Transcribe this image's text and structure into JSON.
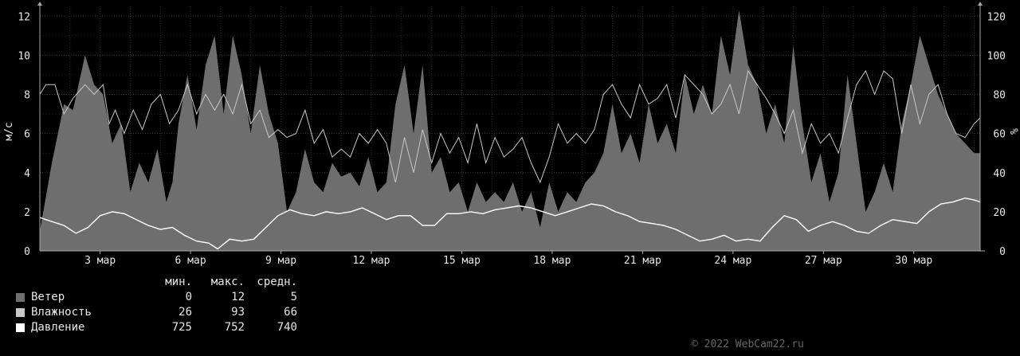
{
  "chart_data": {
    "type": "area",
    "title": "",
    "left_axis": {
      "label": "м/с",
      "ticks": [
        "0",
        "2",
        "4",
        "6",
        "8",
        "10",
        "12"
      ],
      "range": [
        0,
        12.5
      ]
    },
    "right_axis": {
      "label": "%",
      "ticks": [
        "0",
        "20",
        "40",
        "60",
        "80",
        "100",
        "120"
      ],
      "range": [
        0,
        125
      ]
    },
    "x_ticks": [
      {
        "day": 3,
        "label": "3 мар"
      },
      {
        "day": 6,
        "label": "6 мар"
      },
      {
        "day": 9,
        "label": "9 мар"
      },
      {
        "day": 12,
        "label": "12 мар"
      },
      {
        "day": 15,
        "label": "15 мар"
      },
      {
        "day": 18,
        "label": "18 мар"
      },
      {
        "day": 21,
        "label": "21 мар"
      },
      {
        "day": 24,
        "label": "24 мар"
      },
      {
        "day": 27,
        "label": "27 мар"
      },
      {
        "day": 30,
        "label": "30 мар"
      }
    ],
    "x_range_days": [
      1,
      32.2
    ],
    "grid": true,
    "series": [
      {
        "name": "Ветер",
        "axis": "left",
        "color": "#6e6e6e",
        "style": "area",
        "points": [
          [
            1.0,
            1.0
          ],
          [
            1.4,
            4.5
          ],
          [
            1.8,
            7.5
          ],
          [
            2.1,
            7.2
          ],
          [
            2.5,
            10.0
          ],
          [
            2.8,
            8.5
          ],
          [
            3.1,
            8.0
          ],
          [
            3.4,
            5.5
          ],
          [
            3.7,
            6.5
          ],
          [
            4.0,
            3.0
          ],
          [
            4.3,
            4.5
          ],
          [
            4.6,
            3.5
          ],
          [
            4.9,
            5.2
          ],
          [
            5.2,
            2.5
          ],
          [
            5.4,
            3.5
          ],
          [
            5.6,
            6.5
          ],
          [
            5.9,
            9.0
          ],
          [
            6.2,
            6.2
          ],
          [
            6.5,
            9.5
          ],
          [
            6.8,
            11.0
          ],
          [
            7.1,
            7.0
          ],
          [
            7.4,
            11.0
          ],
          [
            7.7,
            9.0
          ],
          [
            8.0,
            6.0
          ],
          [
            8.3,
            9.5
          ],
          [
            8.6,
            7.0
          ],
          [
            8.9,
            5.5
          ],
          [
            9.2,
            2.0
          ],
          [
            9.5,
            3.0
          ],
          [
            9.8,
            5.2
          ],
          [
            10.1,
            3.5
          ],
          [
            10.4,
            3.0
          ],
          [
            10.7,
            4.5
          ],
          [
            11.0,
            3.8
          ],
          [
            11.3,
            4.0
          ],
          [
            11.6,
            3.3
          ],
          [
            11.9,
            4.8
          ],
          [
            12.2,
            3.0
          ],
          [
            12.5,
            3.5
          ],
          [
            12.8,
            7.5
          ],
          [
            13.1,
            9.5
          ],
          [
            13.4,
            6.0
          ],
          [
            13.7,
            9.5
          ],
          [
            14.0,
            4.0
          ],
          [
            14.3,
            4.8
          ],
          [
            14.6,
            3.0
          ],
          [
            14.9,
            3.5
          ],
          [
            15.2,
            2.0
          ],
          [
            15.5,
            3.5
          ],
          [
            15.8,
            2.5
          ],
          [
            16.1,
            3.0
          ],
          [
            16.4,
            2.5
          ],
          [
            16.7,
            3.5
          ],
          [
            17.0,
            2.0
          ],
          [
            17.3,
            3.0
          ],
          [
            17.6,
            1.2
          ],
          [
            17.9,
            3.5
          ],
          [
            18.2,
            2.0
          ],
          [
            18.5,
            3.0
          ],
          [
            18.8,
            2.5
          ],
          [
            19.1,
            3.5
          ],
          [
            19.4,
            4.0
          ],
          [
            19.7,
            5.0
          ],
          [
            20.0,
            7.5
          ],
          [
            20.3,
            5.0
          ],
          [
            20.6,
            6.0
          ],
          [
            20.9,
            4.5
          ],
          [
            21.2,
            7.5
          ],
          [
            21.5,
            5.5
          ],
          [
            21.8,
            6.5
          ],
          [
            22.1,
            5.0
          ],
          [
            22.4,
            9.0
          ],
          [
            22.7,
            7.0
          ],
          [
            23.0,
            8.5
          ],
          [
            23.3,
            7.0
          ],
          [
            23.6,
            11.0
          ],
          [
            23.9,
            9.0
          ],
          [
            24.2,
            12.3
          ],
          [
            24.5,
            9.5
          ],
          [
            24.8,
            8.5
          ],
          [
            25.1,
            6.0
          ],
          [
            25.4,
            7.5
          ],
          [
            25.7,
            5.5
          ],
          [
            26.0,
            10.5
          ],
          [
            26.3,
            6.5
          ],
          [
            26.6,
            3.5
          ],
          [
            26.9,
            5.0
          ],
          [
            27.2,
            2.5
          ],
          [
            27.5,
            4.0
          ],
          [
            27.8,
            9.0
          ],
          [
            28.1,
            5.5
          ],
          [
            28.4,
            2.0
          ],
          [
            28.7,
            3.0
          ],
          [
            29.0,
            4.5
          ],
          [
            29.3,
            3.0
          ],
          [
            29.6,
            6.5
          ],
          [
            29.9,
            8.5
          ],
          [
            30.2,
            11.0
          ],
          [
            30.5,
            9.5
          ],
          [
            30.8,
            8.0
          ],
          [
            31.1,
            7.0
          ],
          [
            31.4,
            6.0
          ],
          [
            31.7,
            5.5
          ],
          [
            32.0,
            5.0
          ],
          [
            32.2,
            5.0
          ]
        ]
      },
      {
        "name": "Влажность",
        "axis": "right",
        "color": "#c8c8c8",
        "style": "line",
        "points": [
          [
            1.0,
            80
          ],
          [
            1.2,
            85
          ],
          [
            1.5,
            85
          ],
          [
            1.8,
            70
          ],
          [
            2.1,
            78
          ],
          [
            2.5,
            85
          ],
          [
            2.8,
            80
          ],
          [
            3.1,
            85
          ],
          [
            3.3,
            65
          ],
          [
            3.5,
            72
          ],
          [
            3.8,
            60
          ],
          [
            4.1,
            72
          ],
          [
            4.4,
            62
          ],
          [
            4.7,
            75
          ],
          [
            5.0,
            80
          ],
          [
            5.3,
            65
          ],
          [
            5.6,
            72
          ],
          [
            5.9,
            85
          ],
          [
            6.2,
            70
          ],
          [
            6.5,
            80
          ],
          [
            6.8,
            72
          ],
          [
            7.1,
            80
          ],
          [
            7.4,
            70
          ],
          [
            7.7,
            85
          ],
          [
            8.0,
            65
          ],
          [
            8.3,
            72
          ],
          [
            8.6,
            58
          ],
          [
            8.9,
            62
          ],
          [
            9.2,
            58
          ],
          [
            9.5,
            60
          ],
          [
            9.8,
            72
          ],
          [
            10.1,
            55
          ],
          [
            10.4,
            62
          ],
          [
            10.7,
            48
          ],
          [
            11.0,
            52
          ],
          [
            11.3,
            48
          ],
          [
            11.6,
            60
          ],
          [
            11.9,
            55
          ],
          [
            12.2,
            62
          ],
          [
            12.5,
            55
          ],
          [
            12.8,
            35
          ],
          [
            13.1,
            58
          ],
          [
            13.4,
            40
          ],
          [
            13.7,
            62
          ],
          [
            14.0,
            45
          ],
          [
            14.3,
            60
          ],
          [
            14.6,
            50
          ],
          [
            14.9,
            58
          ],
          [
            15.2,
            45
          ],
          [
            15.5,
            65
          ],
          [
            15.8,
            45
          ],
          [
            16.1,
            58
          ],
          [
            16.4,
            48
          ],
          [
            16.7,
            52
          ],
          [
            17.0,
            58
          ],
          [
            17.3,
            45
          ],
          [
            17.6,
            35
          ],
          [
            17.9,
            48
          ],
          [
            18.2,
            65
          ],
          [
            18.5,
            55
          ],
          [
            18.8,
            60
          ],
          [
            19.1,
            55
          ],
          [
            19.4,
            62
          ],
          [
            19.7,
            80
          ],
          [
            20.0,
            85
          ],
          [
            20.3,
            75
          ],
          [
            20.6,
            68
          ],
          [
            20.9,
            85
          ],
          [
            21.2,
            75
          ],
          [
            21.5,
            78
          ],
          [
            21.8,
            85
          ],
          [
            22.1,
            68
          ],
          [
            22.4,
            90
          ],
          [
            22.7,
            85
          ],
          [
            23.0,
            80
          ],
          [
            23.3,
            70
          ],
          [
            23.6,
            75
          ],
          [
            23.9,
            85
          ],
          [
            24.2,
            70
          ],
          [
            24.5,
            92
          ],
          [
            24.8,
            85
          ],
          [
            25.1,
            78
          ],
          [
            25.4,
            70
          ],
          [
            25.7,
            60
          ],
          [
            26.0,
            72
          ],
          [
            26.3,
            50
          ],
          [
            26.6,
            65
          ],
          [
            26.9,
            55
          ],
          [
            27.2,
            60
          ],
          [
            27.5,
            50
          ],
          [
            27.8,
            68
          ],
          [
            28.1,
            85
          ],
          [
            28.4,
            92
          ],
          [
            28.7,
            80
          ],
          [
            29.0,
            92
          ],
          [
            29.3,
            88
          ],
          [
            29.6,
            60
          ],
          [
            29.9,
            85
          ],
          [
            30.2,
            65
          ],
          [
            30.5,
            80
          ],
          [
            30.8,
            85
          ],
          [
            31.1,
            70
          ],
          [
            31.4,
            60
          ],
          [
            31.7,
            58
          ],
          [
            32.0,
            65
          ],
          [
            32.2,
            68
          ]
        ]
      },
      {
        "name": "Давление",
        "axis": "left",
        "color": "#ffffff",
        "style": "line",
        "points": [
          [
            1.0,
            1.7
          ],
          [
            1.4,
            1.5
          ],
          [
            1.8,
            1.3
          ],
          [
            2.2,
            0.9
          ],
          [
            2.6,
            1.2
          ],
          [
            3.0,
            1.8
          ],
          [
            3.4,
            2.0
          ],
          [
            3.8,
            1.9
          ],
          [
            4.2,
            1.6
          ],
          [
            4.6,
            1.3
          ],
          [
            5.0,
            1.1
          ],
          [
            5.4,
            1.2
          ],
          [
            5.8,
            0.8
          ],
          [
            6.2,
            0.5
          ],
          [
            6.6,
            0.4
          ],
          [
            6.9,
            0.1
          ],
          [
            7.3,
            0.6
          ],
          [
            7.7,
            0.5
          ],
          [
            8.1,
            0.6
          ],
          [
            8.5,
            1.2
          ],
          [
            8.9,
            1.8
          ],
          [
            9.3,
            2.1
          ],
          [
            9.7,
            1.9
          ],
          [
            10.1,
            1.8
          ],
          [
            10.5,
            2.0
          ],
          [
            10.9,
            1.9
          ],
          [
            11.3,
            2.0
          ],
          [
            11.7,
            2.2
          ],
          [
            12.1,
            1.9
          ],
          [
            12.5,
            1.6
          ],
          [
            12.9,
            1.8
          ],
          [
            13.3,
            1.8
          ],
          [
            13.7,
            1.3
          ],
          [
            14.1,
            1.3
          ],
          [
            14.5,
            1.9
          ],
          [
            14.9,
            1.9
          ],
          [
            15.3,
            2.0
          ],
          [
            15.7,
            1.9
          ],
          [
            16.1,
            2.1
          ],
          [
            16.5,
            2.2
          ],
          [
            16.9,
            2.3
          ],
          [
            17.3,
            2.2
          ],
          [
            17.7,
            2.0
          ],
          [
            18.1,
            1.8
          ],
          [
            18.5,
            2.0
          ],
          [
            18.9,
            2.2
          ],
          [
            19.3,
            2.4
          ],
          [
            19.7,
            2.3
          ],
          [
            20.1,
            2.0
          ],
          [
            20.5,
            1.8
          ],
          [
            20.9,
            1.5
          ],
          [
            21.3,
            1.4
          ],
          [
            21.7,
            1.3
          ],
          [
            22.1,
            1.1
          ],
          [
            22.5,
            0.8
          ],
          [
            22.9,
            0.5
          ],
          [
            23.3,
            0.6
          ],
          [
            23.7,
            0.8
          ],
          [
            24.1,
            0.5
          ],
          [
            24.5,
            0.6
          ],
          [
            24.9,
            0.5
          ],
          [
            25.3,
            1.2
          ],
          [
            25.7,
            1.8
          ],
          [
            26.1,
            1.6
          ],
          [
            26.5,
            1.0
          ],
          [
            26.9,
            1.3
          ],
          [
            27.3,
            1.5
          ],
          [
            27.7,
            1.3
          ],
          [
            28.1,
            1.0
          ],
          [
            28.5,
            0.9
          ],
          [
            28.9,
            1.3
          ],
          [
            29.3,
            1.6
          ],
          [
            29.7,
            1.5
          ],
          [
            30.1,
            1.4
          ],
          [
            30.5,
            2.0
          ],
          [
            30.9,
            2.4
          ],
          [
            31.3,
            2.5
          ],
          [
            31.7,
            2.7
          ],
          [
            32.0,
            2.6
          ],
          [
            32.2,
            2.5
          ]
        ]
      }
    ]
  },
  "legend": {
    "headers": {
      "min": "мин.",
      "max": "макс.",
      "avg": "средн."
    },
    "rows": [
      {
        "name": "Ветер",
        "color": "#6e6e6e",
        "min": "0",
        "max": "12",
        "avg": "5"
      },
      {
        "name": "Влажность",
        "color": "#c8c8c8",
        "min": "26",
        "max": "93",
        "avg": "66"
      },
      {
        "name": "Давление",
        "color": "#ffffff",
        "min": "725",
        "max": "752",
        "avg": "740"
      }
    ]
  },
  "copyright": "© 2022 WebCam22.ru"
}
